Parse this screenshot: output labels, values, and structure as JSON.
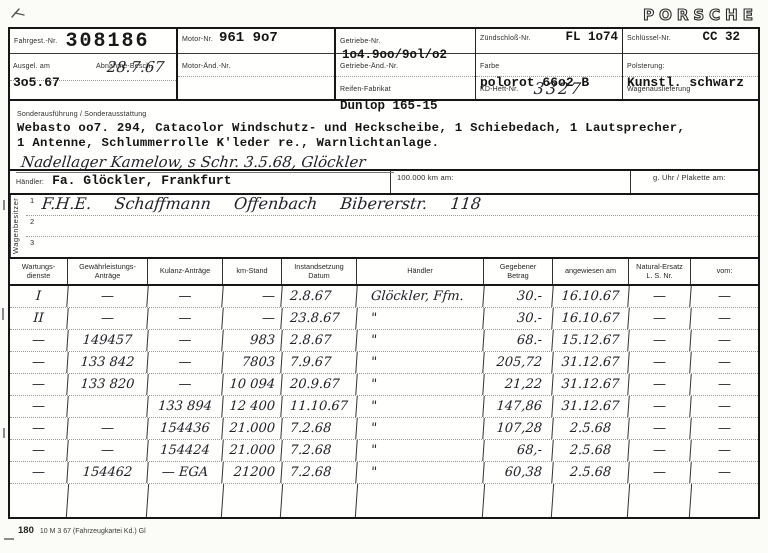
{
  "brand": {
    "logo": "PORSCHE"
  },
  "id_grid": {
    "fahrgest": {
      "label": "Fahrgest.-Nr.",
      "value": "308186"
    },
    "ausgel": {
      "label": "Ausgel. am",
      "value": "3o5.67"
    },
    "abnahme": {
      "label": "Abnahme-Besch.",
      "value": "28.7.67"
    },
    "motor": {
      "label": "Motor-Nr.",
      "value": "961 9o7"
    },
    "motor_aend": {
      "label": "Motor-Änd.-Nr.",
      "value": ""
    },
    "getriebe": {
      "label": "Getriebe-Nr.",
      "value": "1o4.9oo/9ol/o2"
    },
    "getriebe_aend": {
      "label": "Getriebe-Änd.-Nr.",
      "value": ""
    },
    "reifen": {
      "label": "Reifen-Fabrikat",
      "value": "Dunlop 165-15"
    },
    "zuendschloss": {
      "label": "Zündschloß-Nr.",
      "value": "FL 1o74"
    },
    "farbe": {
      "label": "Farbe",
      "value": "polorot 66o2 B"
    },
    "kd_heft": {
      "label": "KD-Heft-Nr.",
      "value": "3327"
    },
    "schluessel": {
      "label": "Schlüssel-Nr.",
      "value": "CC 32"
    },
    "polsterung": {
      "label": "Polsterung:",
      "value": "Kunstl. schwarz"
    },
    "wagenauslieferung": {
      "label": "Wagenauslieferung",
      "value": ""
    }
  },
  "sonder": {
    "label": "Sonderausführung / Sonderausstattung",
    "line1": "Webasto oo7. 294, Catacolor Windschutz- und Heckscheibe, 1 Schiebedach, 1 Lautsprecher,",
    "line2": "1 Antenne, Schlummerrolle K'leder re., Warnlichtanlage.",
    "handwritten": "Nadellager Kamelow, s Schr. 3.5.68, Glöckler"
  },
  "haendler_row": {
    "label": "Händler:",
    "value": "Fa. Glöckler, Frankfurt",
    "km_label": "100.000 km am:",
    "uhr_label": "g. Uhr / Plakette am:"
  },
  "owners": {
    "side_label": "Wagenbesitzer",
    "rows": [
      {
        "num": "1",
        "text": "F.H.E. Schaffmann Offenbach Bibererstr. 118"
      },
      {
        "num": "2",
        "text": ""
      },
      {
        "num": "3",
        "text": ""
      }
    ]
  },
  "table": {
    "headers": [
      "Wartungs-\ndienste",
      "Gewährleistungs-\nAnträge",
      "Kulanz-Anträge",
      "km-Stand",
      "Instandsetzung\nDatum",
      "Händler",
      "Gegebener\nBetrag",
      "angewiesen am",
      "Natural-Ersatz\nL. S. Nr.",
      "vom:"
    ],
    "rows": [
      [
        "I",
        "—",
        "—",
        "—",
        "2.8.67",
        "Glöckler, Ffm.",
        "30.-",
        "16.10.67",
        "—",
        "—"
      ],
      [
        "II",
        "—",
        "—",
        "—",
        "23.8.67",
        "\"",
        "30.-",
        "16.10.67",
        "—",
        "—"
      ],
      [
        "—",
        "149457",
        "—",
        "983",
        "2.8.67",
        "\"",
        "68.-",
        "15.12.67",
        "—",
        "—"
      ],
      [
        "—",
        "133 842",
        "—",
        "7803",
        "7.9.67",
        "\"",
        "205,72",
        "31.12.67",
        "—",
        "—"
      ],
      [
        "—",
        "133 820",
        "—",
        "10 094",
        "20.9.67",
        "\"",
        "21,22",
        "31.12.67",
        "—",
        "—"
      ],
      [
        "—",
        "",
        "133 894",
        "12 400",
        "11.10.67",
        "\"",
        "147,86",
        "31.12.67",
        "—",
        "—"
      ],
      [
        "—",
        "—",
        "154436",
        "21.000",
        "7.2.68",
        "\"",
        "107,28",
        "2.5.68",
        "—",
        "—"
      ],
      [
        "—",
        "—",
        "154424",
        "21.000",
        "7.2.68",
        "\"",
        "68,-",
        "2.5.68",
        "—",
        "—"
      ],
      [
        "—",
        "154462",
        "— EGA",
        "21200",
        "7.2.68",
        "\"",
        "60,38",
        "2.5.68",
        "—",
        "—"
      ],
      [
        "",
        "",
        "",
        "",
        "",
        "",
        "",
        "",
        "",
        ""
      ]
    ]
  },
  "footer": {
    "number": "180",
    "text": "10 M 3 67 (Fahrzeugkartei Kd.) Gl"
  }
}
